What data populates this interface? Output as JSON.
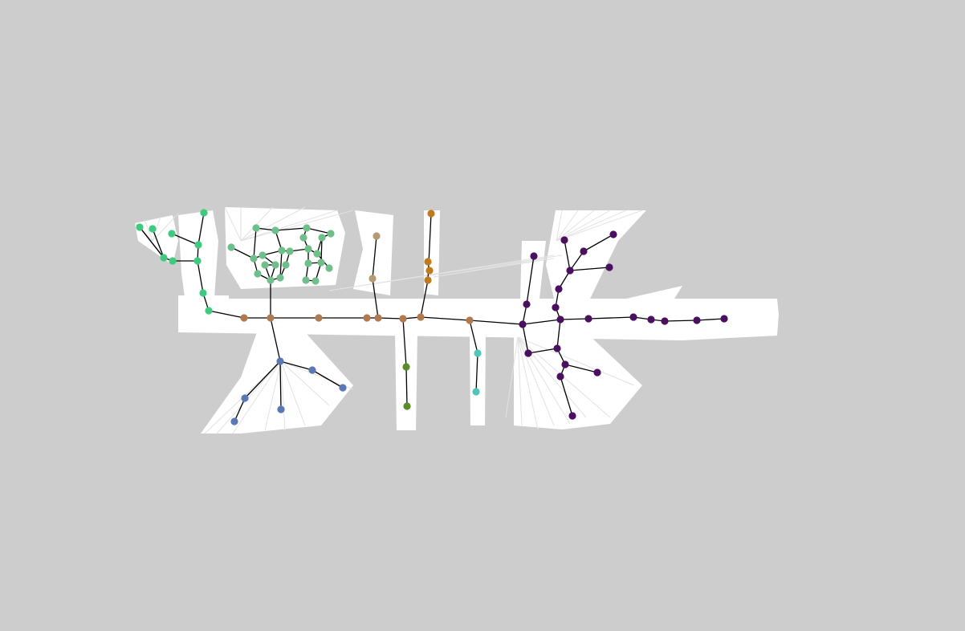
{
  "colors": {
    "background": "#cdcdcd",
    "free_space": "#ffffff",
    "obstacle": "#111111",
    "edge": "#000000"
  },
  "regions": [
    {
      "name": "region-green",
      "color": "#3ecb7f"
    },
    {
      "name": "region-sage",
      "color": "#6fbf8a"
    },
    {
      "name": "region-corridor-brown",
      "color": "#b07a50"
    },
    {
      "name": "region-tan",
      "color": "#b59a74"
    },
    {
      "name": "region-amber",
      "color": "#c07a1e"
    },
    {
      "name": "region-slate-blue",
      "color": "#5a78b4"
    },
    {
      "name": "region-olive",
      "color": "#5a8c2a"
    },
    {
      "name": "region-teal",
      "color": "#4fc7b8"
    },
    {
      "name": "region-purple",
      "color": "#4a0f5e"
    }
  ]
}
